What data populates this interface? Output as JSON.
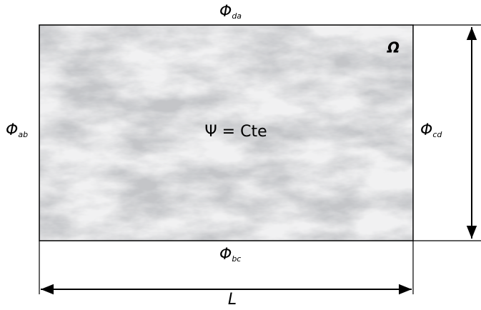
{
  "domain": {
    "symbol": "Ω",
    "equation": "Ψ = Cte"
  },
  "boundaries": {
    "top": {
      "symbol": "Φ",
      "subscript": "da"
    },
    "left": {
      "symbol": "Φ",
      "subscript": "ab"
    },
    "right": {
      "symbol": "Φ",
      "subscript": "cd"
    },
    "bottom": {
      "symbol": "Φ",
      "subscript": "bc"
    }
  },
  "dimensions": {
    "width": "L"
  }
}
